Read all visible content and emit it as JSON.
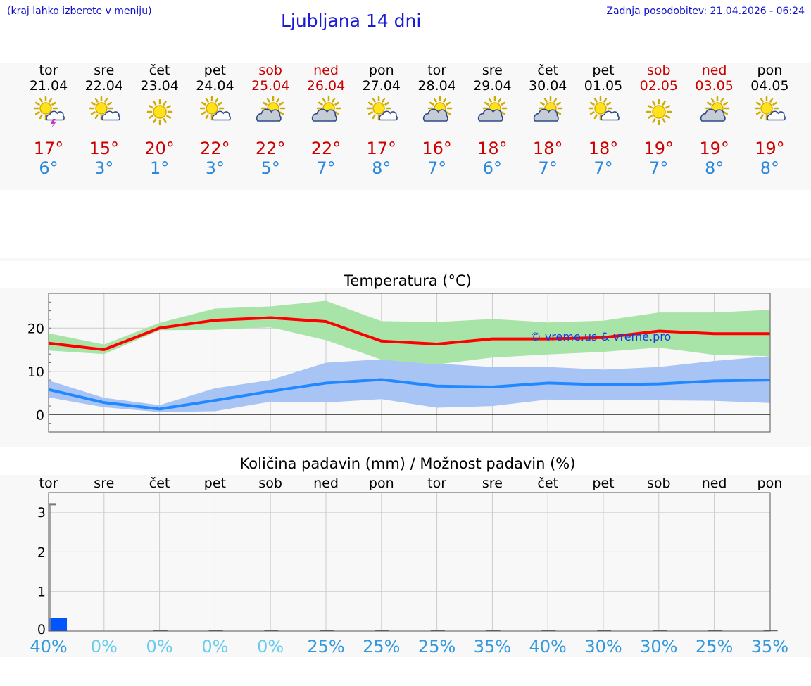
{
  "header": {
    "hint": "(kraj lahko izberete v meniju)",
    "title": "Ljubljana 14 dni",
    "updated": "Zadnja posodobitev: 21.04.2026 - 06:24"
  },
  "days": [
    {
      "name": "tor",
      "date": "21.04",
      "icon": "partly-cloudy-thunder-icon",
      "max": "17°",
      "min": "6°",
      "weekend": false
    },
    {
      "name": "sre",
      "date": "22.04",
      "icon": "partly-cloudy-icon",
      "max": "15°",
      "min": "3°",
      "weekend": false
    },
    {
      "name": "čet",
      "date": "23.04",
      "icon": "sunny-icon",
      "max": "20°",
      "min": "1°",
      "weekend": false
    },
    {
      "name": "pet",
      "date": "24.04",
      "icon": "partly-cloudy-icon",
      "max": "22°",
      "min": "3°",
      "weekend": false
    },
    {
      "name": "sob",
      "date": "25.04",
      "icon": "mostly-cloudy-icon",
      "max": "22°",
      "min": "5°",
      "weekend": true
    },
    {
      "name": "ned",
      "date": "26.04",
      "icon": "mostly-cloudy-icon",
      "max": "22°",
      "min": "7°",
      "weekend": true
    },
    {
      "name": "pon",
      "date": "27.04",
      "icon": "partly-cloudy-icon",
      "max": "17°",
      "min": "8°",
      "weekend": false
    },
    {
      "name": "tor",
      "date": "28.04",
      "icon": "mostly-cloudy-icon",
      "max": "16°",
      "min": "7°",
      "weekend": false
    },
    {
      "name": "sre",
      "date": "29.04",
      "icon": "mostly-cloudy-icon",
      "max": "18°",
      "min": "6°",
      "weekend": false
    },
    {
      "name": "čet",
      "date": "30.04",
      "icon": "mostly-cloudy-icon",
      "max": "18°",
      "min": "7°",
      "weekend": false
    },
    {
      "name": "pet",
      "date": "01.05",
      "icon": "partly-cloudy-icon",
      "max": "18°",
      "min": "7°",
      "weekend": false
    },
    {
      "name": "sob",
      "date": "02.05",
      "icon": "sunny-icon",
      "max": "19°",
      "min": "7°",
      "weekend": true
    },
    {
      "name": "ned",
      "date": "03.05",
      "icon": "mostly-cloudy-icon",
      "max": "19°",
      "min": "8°",
      "weekend": true
    },
    {
      "name": "pon",
      "date": "04.05",
      "icon": "partly-cloudy-icon",
      "max": "19°",
      "min": "8°",
      "weekend": false
    }
  ],
  "colors": {
    "max_line": "#ff0000",
    "min_line": "#2288ff",
    "max_band": "#a8e4a8",
    "min_band": "#a8c4f4",
    "weekend_text": "#cc0000",
    "precip_bar": "#0055ff",
    "pct_dark": "#3399dd",
    "pct_light": "#66ccee"
  },
  "chart_data": [
    {
      "type": "line",
      "title": "Temperatura (°C)",
      "watermark": "© vreme.us & vreme.pro",
      "ylim": [
        -4,
        28
      ],
      "yticks": [
        0,
        10,
        20
      ],
      "x": [
        0,
        1,
        2,
        3,
        4,
        5,
        6,
        7,
        8,
        9,
        10,
        11,
        12,
        13
      ],
      "series": [
        {
          "name": "max",
          "values": [
            16.5,
            15,
            20,
            21.8,
            22.4,
            21.5,
            17,
            16.3,
            17.5,
            17.5,
            17.8,
            19.3,
            18.7,
            18.7
          ]
        },
        {
          "name": "max_range_low",
          "values": [
            14.8,
            14,
            19.5,
            19.6,
            20.2,
            17.2,
            12.7,
            11.6,
            13.2,
            13.9,
            14.5,
            15.5,
            13.8,
            13.5
          ]
        },
        {
          "name": "max_range_high",
          "values": [
            18.8,
            16.2,
            21.2,
            24.5,
            25,
            26.3,
            21.6,
            21.4,
            22.1,
            21.3,
            21.7,
            23.6,
            23.6,
            24.2
          ]
        },
        {
          "name": "min",
          "values": [
            5.8,
            2.8,
            1.3,
            3.3,
            5.4,
            7.3,
            8.1,
            6.6,
            6.4,
            7.3,
            6.9,
            7.1,
            7.8,
            8
          ]
        },
        {
          "name": "min_range_low",
          "values": [
            4,
            1.7,
            0.6,
            0.8,
            3,
            2.8,
            3.6,
            1.6,
            2,
            3.5,
            3.3,
            3.3,
            3.2,
            2.7
          ]
        },
        {
          "name": "min_range_high",
          "values": [
            7.9,
            3.9,
            2.2,
            6.1,
            8,
            12,
            12.8,
            11.8,
            11,
            11,
            10.4,
            11,
            12.4,
            13.5
          ]
        }
      ]
    },
    {
      "type": "bar",
      "title": "Količina padavin (mm) / Možnost padavin (%)",
      "ylim": [
        0,
        3.5
      ],
      "yticks": [
        0,
        1,
        2,
        3
      ],
      "categories": [
        "tor",
        "sre",
        "čet",
        "pet",
        "sob",
        "ned",
        "pon",
        "tor",
        "sre",
        "čet",
        "pet",
        "sob",
        "ned",
        "pon"
      ],
      "precip_mm": [
        0.33,
        0,
        0,
        0,
        0,
        0,
        0,
        0,
        0,
        0,
        0,
        0,
        0,
        0
      ],
      "max_marker_mm": 3.2,
      "probability": [
        "40%",
        "0%",
        "0%",
        "0%",
        "0%",
        "25%",
        "25%",
        "25%",
        "35%",
        "40%",
        "30%",
        "30%",
        "25%",
        "35%"
      ]
    }
  ]
}
